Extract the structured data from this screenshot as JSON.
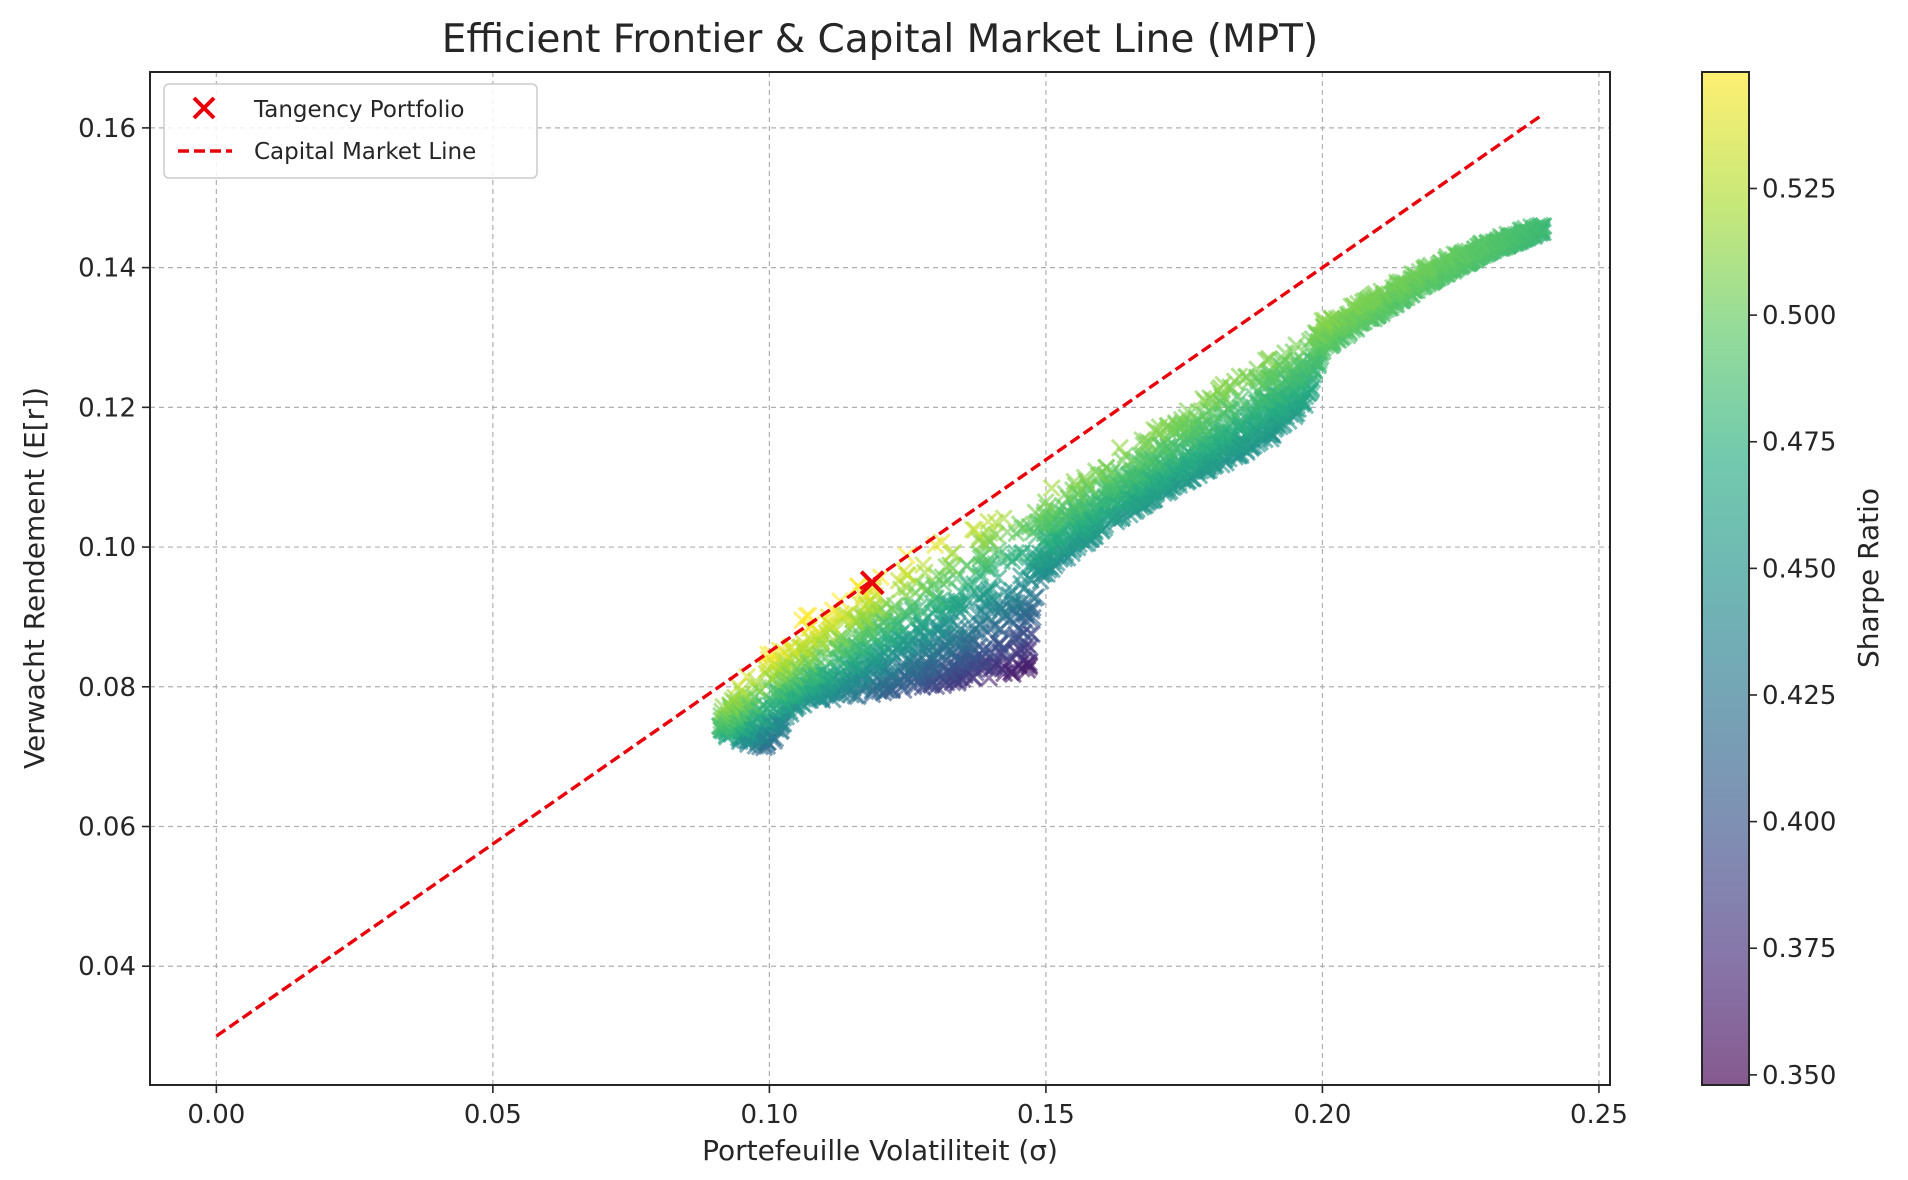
{
  "chart_data": {
    "type": "scatter",
    "title": "Efficient Frontier & Capital Market Line (MPT)",
    "xlabel": "Portefeuille Volatiliteit (σ)",
    "ylabel": "Verwacht Rendement (E[r])",
    "xlim": [
      -0.012,
      0.252
    ],
    "ylim": [
      0.023,
      0.168
    ],
    "x_ticks": [
      "0.00",
      "0.05",
      "0.10",
      "0.15",
      "0.20",
      "0.25"
    ],
    "y_ticks": [
      "0.04",
      "0.06",
      "0.08",
      "0.10",
      "0.12",
      "0.14",
      "0.16"
    ],
    "grid": true,
    "legend_position": "top-left",
    "legend": [
      "Tangency Portfolio",
      "Capital Market Line"
    ],
    "colorbar": {
      "label": "Sharpe Ratio",
      "colormap": "viridis",
      "range": [
        0.348,
        0.548
      ],
      "ticks": [
        "0.350",
        "0.375",
        "0.400",
        "0.425",
        "0.450",
        "0.475",
        "0.500",
        "0.525"
      ]
    },
    "tangency_portfolio": {
      "x": 0.1186,
      "y": 0.0949,
      "color": "#e8000b"
    },
    "capital_market_line": {
      "x": [
        0.0,
        0.24
      ],
      "y": [
        0.03,
        0.162
      ],
      "color": "#e8000b",
      "style": "dashed"
    },
    "simulated_portfolios": {
      "marker": "x",
      "color_by": "Sharpe Ratio",
      "frontier_upper": {
        "x": [
          0.091,
          0.095,
          0.1,
          0.105,
          0.11,
          0.115,
          0.12,
          0.125,
          0.13,
          0.14,
          0.15,
          0.16,
          0.17,
          0.18,
          0.19,
          0.2,
          0.21,
          0.22,
          0.23,
          0.24
        ],
        "y": [
          0.077,
          0.081,
          0.0855,
          0.0895,
          0.0925,
          0.095,
          0.0975,
          0.0995,
          0.1015,
          0.105,
          0.1085,
          0.113,
          0.1175,
          0.1225,
          0.1275,
          0.1325,
          0.137,
          0.141,
          0.144,
          0.1465
        ]
      },
      "frontier_lower": {
        "x": [
          0.091,
          0.095,
          0.1,
          0.105,
          0.11,
          0.12,
          0.13,
          0.14,
          0.147,
          0.148,
          0.15,
          0.16,
          0.17,
          0.18,
          0.19,
          0.197,
          0.2,
          0.21,
          0.22,
          0.23,
          0.24
        ],
        "y": [
          0.073,
          0.072,
          0.071,
          0.077,
          0.078,
          0.079,
          0.08,
          0.081,
          0.082,
          0.092,
          0.096,
          0.102,
          0.107,
          0.111,
          0.115,
          0.12,
          0.128,
          0.133,
          0.138,
          0.142,
          0.145
        ]
      },
      "sharpe_extremes": {
        "max_at": {
          "x": 0.1186,
          "y": 0.0949,
          "sharpe": 0.547
        },
        "min_at": {
          "x": 0.14,
          "y": 0.081,
          "sharpe": 0.349
        }
      }
    }
  }
}
